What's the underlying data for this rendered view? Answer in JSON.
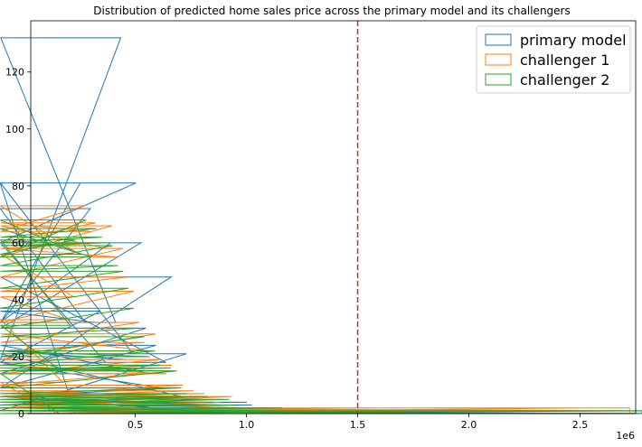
{
  "chart_data": {
    "type": "histogram",
    "title": "Distribution of predicted home sales price across the primary model and its challengers",
    "xlabel": "",
    "ylabel": "",
    "x_offset_label": "1e6",
    "xlim": [
      0.03,
      2.75
    ],
    "ylim": [
      0,
      138
    ],
    "xticks": [
      0.5,
      1.0,
      1.5,
      2.0,
      2.5
    ],
    "xtick_labels": [
      "0.5",
      "1.0",
      "1.5",
      "2.0",
      "2.5"
    ],
    "yticks": [
      0,
      20,
      40,
      60,
      80,
      100,
      120
    ],
    "ytick_labels": [
      "0",
      "20",
      "40",
      "60",
      "80",
      "100",
      "120"
    ],
    "grid": false,
    "legend_position": "upper-right",
    "reference_line": {
      "x": 1.5,
      "color": "#d62728",
      "style": "dashed"
    },
    "series": [
      {
        "name": "primary model",
        "color": "#1f77b4",
        "bin_start": 0.23,
        "bin_width": 0.0227,
        "counts": [
          81,
          32,
          72,
          32,
          36,
          18,
          60,
          32,
          132,
          19,
          22,
          81,
          60,
          30,
          14,
          24,
          9,
          18,
          48,
          9,
          6,
          21,
          1,
          6,
          3,
          6,
          3,
          4,
          4,
          4,
          4,
          3,
          2,
          4,
          3,
          2,
          1,
          2,
          1,
          1,
          1,
          1,
          1,
          0,
          0,
          0,
          1,
          1,
          1,
          1,
          1,
          0,
          1,
          1,
          1,
          1,
          0,
          1,
          0,
          0,
          0,
          0,
          0,
          0,
          0,
          0,
          0,
          0,
          0,
          0,
          0,
          0,
          0,
          0,
          0,
          0,
          0,
          0,
          0,
          0,
          0,
          0,
          0,
          0,
          0,
          0,
          0,
          0,
          0,
          0,
          0,
          0,
          0,
          0,
          0,
          0,
          0,
          0,
          0,
          0,
          0,
          0,
          0,
          0,
          0,
          0,
          0,
          0,
          0,
          0,
          0,
          0,
          0,
          0,
          0,
          0,
          0,
          0,
          0,
          0,
          1,
          0,
          1
        ]
      },
      {
        "name": "challenger 1",
        "color": "#ff7f0e",
        "bin_start": 0.15,
        "bin_width": 0.0245,
        "counts": [
          11,
          33,
          41,
          56,
          73,
          64,
          67,
          60,
          58,
          66,
          55,
          58,
          48,
          43,
          32,
          25,
          22,
          28,
          19,
          14,
          17,
          15,
          10,
          6,
          8,
          6,
          7,
          6,
          3,
          4,
          2,
          6,
          2,
          2,
          1,
          2,
          1,
          1,
          2,
          1,
          1,
          1,
          1,
          2,
          1,
          0,
          1,
          1,
          1,
          1,
          1,
          1,
          2,
          1,
          1,
          1,
          1,
          1,
          2,
          1,
          1,
          1,
          1,
          1,
          1,
          1,
          1,
          1,
          1,
          1,
          1,
          1,
          1,
          1,
          1,
          1,
          0,
          0,
          0,
          1,
          1,
          1,
          1,
          1,
          0,
          0,
          0,
          0,
          0,
          0,
          0,
          0,
          0,
          1,
          1,
          2,
          2,
          0,
          0,
          0,
          0,
          0,
          0,
          1,
          2
        ]
      },
      {
        "name": "challenger 2",
        "color": "#2ca02c",
        "bin_start": 0.16,
        "bin_width": 0.0238,
        "counts": [
          14,
          31,
          61,
          56,
          68,
          55,
          65,
          62,
          60,
          59,
          52,
          50,
          44,
          37,
          30,
          27,
          20,
          22,
          17,
          15,
          16,
          15,
          9,
          7,
          6,
          6,
          5,
          6,
          4,
          5,
          3,
          5,
          3,
          2,
          2,
          1,
          2,
          1,
          1,
          1,
          1,
          2,
          1,
          1,
          1,
          1,
          1,
          1,
          1,
          1,
          1,
          1,
          1,
          1,
          1,
          1,
          1,
          1,
          1,
          1,
          1,
          1,
          1,
          1,
          0,
          0,
          0,
          0,
          0,
          0,
          0,
          0,
          0,
          0,
          0,
          0,
          1,
          1,
          1,
          1,
          1,
          1,
          0,
          0,
          0,
          0,
          0,
          0,
          0,
          0,
          0,
          0,
          0,
          0,
          0,
          0,
          0,
          0,
          0,
          0,
          0,
          0,
          0,
          0,
          0,
          0,
          0,
          0,
          0,
          1
        ]
      }
    ]
  }
}
